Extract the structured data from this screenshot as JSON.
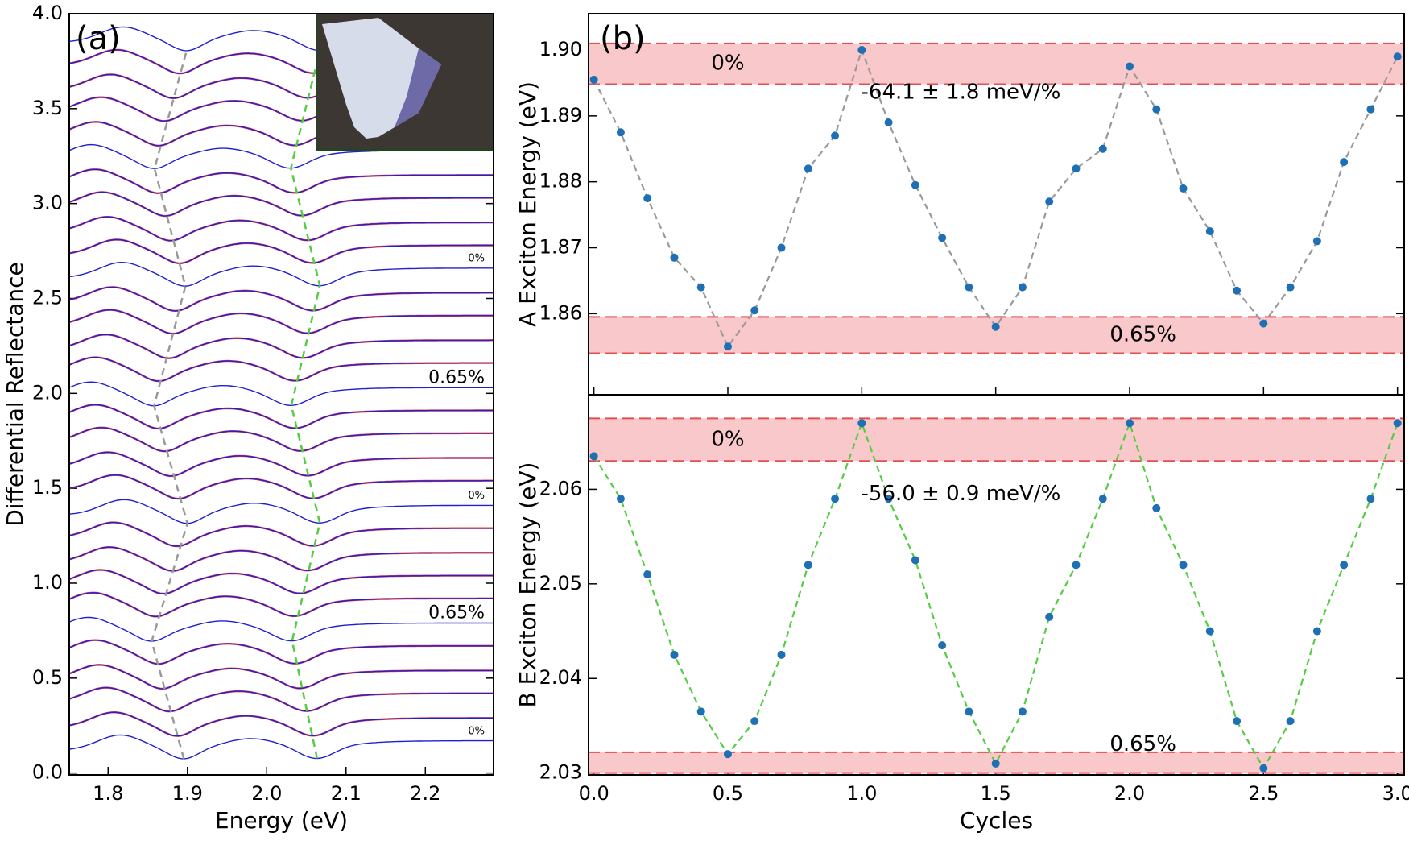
{
  "chart_data": [
    {
      "type": "spectra",
      "label": "(a)",
      "xlabel": "Energy (eV)",
      "ylabel": "Differential Reflectance",
      "xlim": [
        1.751,
        2.286
      ],
      "xticks": [
        1.8,
        1.9,
        {
          "value": 2.0,
          "label": "2.0"
        },
        2.1,
        2.2
      ],
      "ylim": [
        -0.01,
        4.0
      ],
      "yticks": [
        {
          "value": 0,
          "label": "0.0"
        },
        0.5,
        {
          "value": 1,
          "label": "1.0"
        },
        1.5,
        {
          "value": 2,
          "label": "2.0"
        },
        2.5,
        {
          "value": 3,
          "label": "3.0"
        },
        3.5,
        {
          "value": 4,
          "label": "4.0"
        }
      ],
      "offsets": [
        0.12,
        0.24,
        0.37,
        0.49,
        0.62,
        0.74,
        0.87,
        0.99,
        1.11,
        1.24,
        1.36,
        1.49,
        1.61,
        1.74,
        1.86,
        1.98,
        2.11,
        2.23,
        2.36,
        2.48,
        2.61,
        2.73,
        2.85,
        2.98,
        3.1,
        3.23,
        3.35,
        3.48,
        3.6,
        3.73,
        3.85
      ],
      "annotations": [
        {
          "text": "0%",
          "color": "#f4a8b0"
        },
        {
          "text": "0.65%",
          "color": "#000000"
        },
        {
          "text": "0%",
          "color": "#f4a8b0"
        },
        {
          "text": "0.65%",
          "color": "#000000"
        },
        {
          "text": "0%",
          "color": "#f4a8b0"
        }
      ]
    },
    {
      "type": "scatter-line",
      "label": "(b)",
      "ylabel": "A Exciton Energy (eV)",
      "xlim": [
        -0.02,
        3.025
      ],
      "ylim": [
        1.8477,
        1.9055
      ],
      "yticks": [
        1.86,
        1.87,
        1.88,
        1.89,
        {
          "value": 1.9,
          "label": "1.90"
        }
      ],
      "x": [
        0,
        0.1,
        0.2,
        0.3,
        0.4,
        0.5,
        0.6,
        0.7,
        0.8,
        0.9,
        1.0,
        1.1,
        1.2,
        1.3,
        1.4,
        1.5,
        1.6,
        1.7,
        1.8,
        1.9,
        2.0,
        2.1,
        2.2,
        2.3,
        2.4,
        2.5,
        2.6,
        2.7,
        2.8,
        2.9,
        3.0
      ],
      "series": [
        {
          "color": "#1f6fb4",
          "line_color": "#999999",
          "values": [
            1.8955,
            1.8875,
            1.8775,
            1.8685,
            1.864,
            1.855,
            1.8605,
            1.87,
            1.882,
            1.887,
            1.9,
            1.889,
            1.8795,
            1.8715,
            1.864,
            1.858,
            1.864,
            1.877,
            1.882,
            1.885,
            1.8975,
            1.891,
            1.879,
            1.8725,
            1.8635,
            1.8585,
            1.864,
            1.871,
            1.883,
            1.891,
            1.899
          ]
        }
      ],
      "bands": [
        {
          "text": "0%",
          "range": [
            1.8948,
            1.901
          ]
        },
        {
          "text": "0.65%",
          "range": [
            1.854,
            1.8595
          ]
        }
      ],
      "annotation": "-64.1 ± 1.8 meV/%"
    },
    {
      "type": "scatter-line",
      "xlabel": "Cycles",
      "ylabel": "B Exciton Energy (eV)",
      "xlim": [
        -0.02,
        3.025
      ],
      "ylim": [
        2.0298,
        2.07
      ],
      "xticks": [
        {
          "value": 0,
          "label": "0.0"
        },
        0.5,
        {
          "value": 1,
          "label": "1.0"
        },
        1.5,
        {
          "value": 2,
          "label": "2.0"
        },
        2.5,
        {
          "value": 3,
          "label": "3.0"
        }
      ],
      "yticks": [
        2.03,
        2.04,
        2.05,
        2.06
      ],
      "x": [
        0,
        0.1,
        0.2,
        0.3,
        0.4,
        0.5,
        0.6,
        0.7,
        0.8,
        0.9,
        1.0,
        1.1,
        1.2,
        1.3,
        1.4,
        1.5,
        1.6,
        1.7,
        1.8,
        1.9,
        2.0,
        2.1,
        2.2,
        2.3,
        2.4,
        2.5,
        2.6,
        2.7,
        2.8,
        2.9,
        3.0
      ],
      "series": [
        {
          "color": "#1f6fb4",
          "line_color": "#55cc44",
          "values": [
            2.0635,
            2.059,
            2.051,
            2.0425,
            2.0365,
            2.032,
            2.0355,
            2.0425,
            2.052,
            2.059,
            2.067,
            2.059,
            2.0525,
            2.0435,
            2.0365,
            2.031,
            2.0365,
            2.0465,
            2.052,
            2.059,
            2.067,
            2.058,
            2.052,
            2.045,
            2.0355,
            2.0305,
            2.0355,
            2.045,
            2.052,
            2.059,
            2.067
          ]
        }
      ],
      "bands": [
        {
          "text": "0%",
          "range": [
            2.063,
            2.0675
          ]
        },
        {
          "text": "0.65%",
          "range": [
            2.03,
            2.0322
          ]
        }
      ],
      "annotation": "-56.0 ± 0.9 meV/%"
    }
  ]
}
